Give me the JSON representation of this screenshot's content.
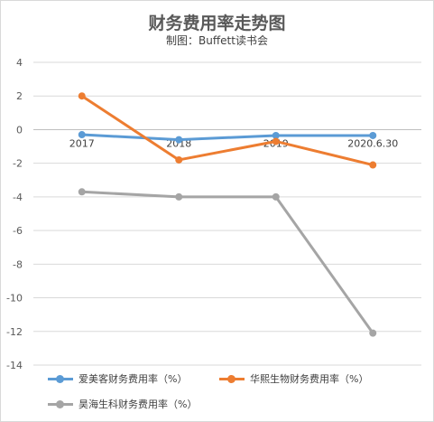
{
  "chart_data": {
    "type": "line",
    "title": "财务费用率走势图",
    "subtitle": "制图：Buffett读书会",
    "categories": [
      "2017",
      "2018",
      "2019",
      "2020.6.30"
    ],
    "ylim": [
      -14,
      4
    ],
    "yticks": [
      4,
      2,
      0,
      -2,
      -4,
      -6,
      -8,
      -10,
      -12,
      -14
    ],
    "grid": true,
    "legend_position": "bottom",
    "series": [
      {
        "name": "爱美客财务费用率（%）",
        "color": "#5b9bd5",
        "values": [
          -0.3,
          -0.6,
          -0.35,
          -0.35
        ]
      },
      {
        "name": "华熙生物财务费用率（%）",
        "color": "#ed7d31",
        "values": [
          2.0,
          -1.8,
          -0.7,
          -2.1
        ]
      },
      {
        "name": "昊海生科财务费用率（%）",
        "color": "#a5a5a5",
        "values": [
          -3.7,
          -4.0,
          -4.0,
          -12.1
        ]
      }
    ]
  }
}
